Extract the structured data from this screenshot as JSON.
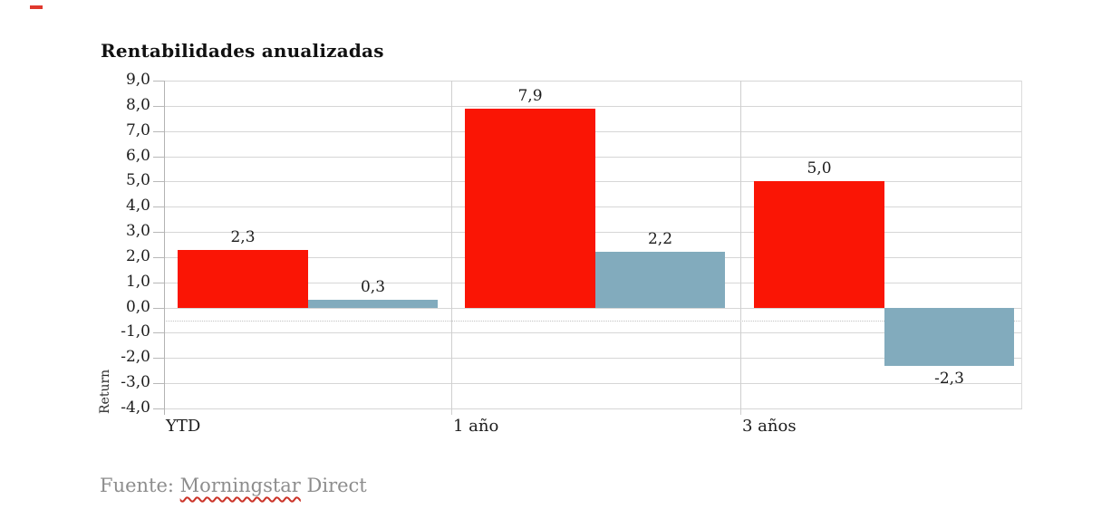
{
  "title": "Rentabilidades anualizadas",
  "footer": {
    "prefix": "Fuente: ",
    "underlined_word": "Morningstar",
    "suffix": " Direct",
    "text_color": "#8d8d8d",
    "squiggle_color": "#cb3227"
  },
  "decoration": {
    "top_left_dash_color": "#e0382e"
  },
  "chart_data": {
    "type": "bar",
    "title": "Rentabilidades anualizadas",
    "categories": [
      "YTD",
      "1 año",
      "3 años"
    ],
    "series": [
      {
        "name": "red-series",
        "color": "#fa1505",
        "values": [
          2.3,
          7.9,
          5.0
        ],
        "labels": [
          "2,3",
          "7,9",
          "5,0"
        ]
      },
      {
        "name": "blue-gray-series",
        "color": "#82abbd",
        "values": [
          0.3,
          2.2,
          -2.3
        ],
        "labels": [
          "0,3",
          "2,2",
          "-2,3"
        ]
      }
    ],
    "xlabel": "",
    "ylabel": "Return",
    "ylim": [
      -4.0,
      9.0
    ],
    "ytick_step": 1.0,
    "ytick_labels": [
      "9,0",
      "8,0",
      "7,0",
      "6,0",
      "5,0",
      "4,0",
      "3,0",
      "2,0",
      "1,0",
      "0,0",
      "-1,0",
      "-2,0",
      "-3,0",
      "-4,0"
    ],
    "grid": {
      "horizontal": true,
      "category_separators": true,
      "dotted_minor_line_at": -0.5
    },
    "legend": null,
    "decimal_style": "comma"
  }
}
